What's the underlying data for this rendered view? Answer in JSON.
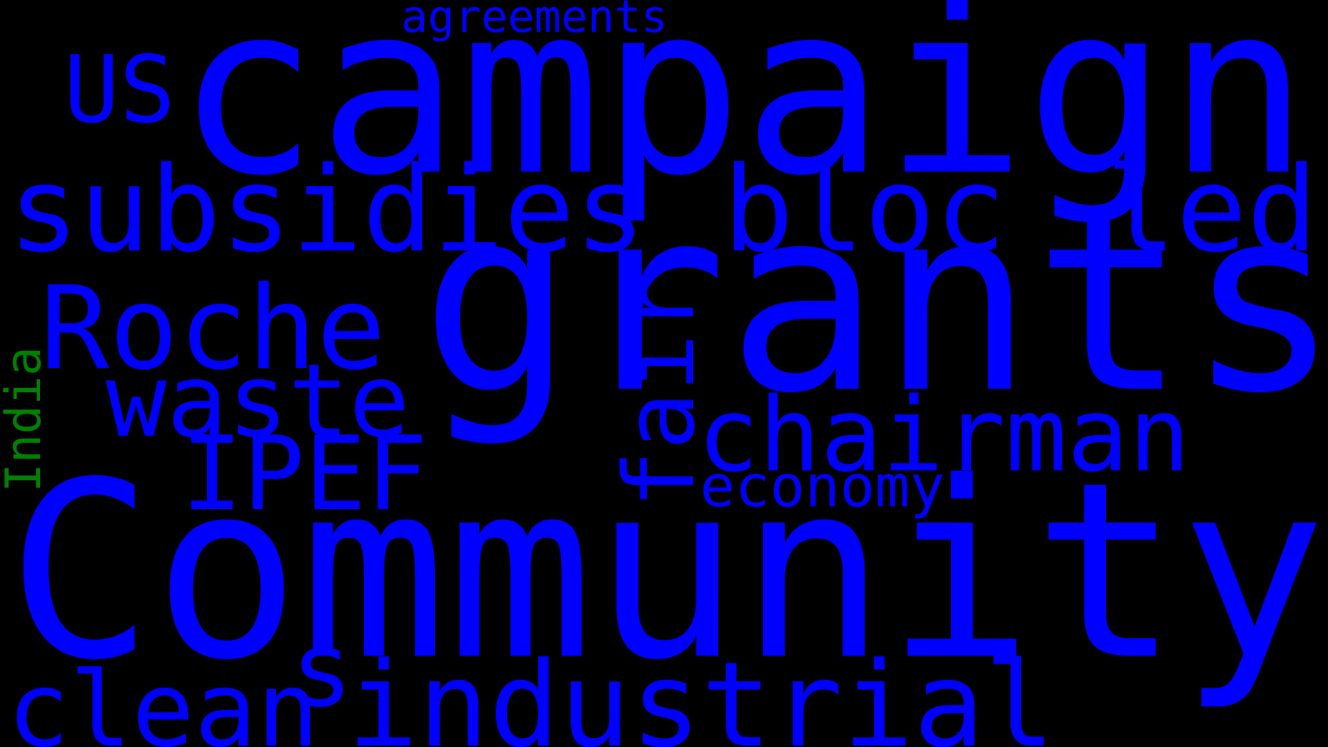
{
  "colors": {
    "background": "#000000",
    "primary_word": "#0000FF",
    "accent_word": "#008000"
  },
  "words": [
    {
      "id": "campaign",
      "text": "campaign",
      "color": "#0000FF"
    },
    {
      "id": "grants",
      "text": "grants",
      "color": "#0000FF"
    },
    {
      "id": "community",
      "text": "Community",
      "color": "#0000FF"
    },
    {
      "id": "industrial",
      "text": "industrial",
      "color": "#0000FF"
    },
    {
      "id": "subsidies",
      "text": "subsidies",
      "color": "#0000FF"
    },
    {
      "id": "roche",
      "text": "Roche",
      "color": "#0000FF"
    },
    {
      "id": "chairman",
      "text": "chairman",
      "color": "#0000FF"
    },
    {
      "id": "waste",
      "text": "waste",
      "color": "#0000FF"
    },
    {
      "id": "bloc",
      "text": "bloc",
      "color": "#0000FF"
    },
    {
      "id": "led",
      "text": "led",
      "color": "#0000FF"
    },
    {
      "id": "ipef",
      "text": "IPEF",
      "color": "#0000FF"
    },
    {
      "id": "clean",
      "text": "clean",
      "color": "#0000FF"
    },
    {
      "id": "us",
      "text": "US",
      "color": "#0000FF"
    },
    {
      "id": "fair",
      "text": "fair",
      "color": "#0000FF"
    },
    {
      "id": "economy",
      "text": "economy",
      "color": "#0000FF"
    },
    {
      "id": "agreements",
      "text": "agreements",
      "color": "#0000FF"
    },
    {
      "id": "s",
      "text": "s",
      "color": "#0000FF"
    },
    {
      "id": "india",
      "text": "India",
      "color": "#008000"
    }
  ]
}
